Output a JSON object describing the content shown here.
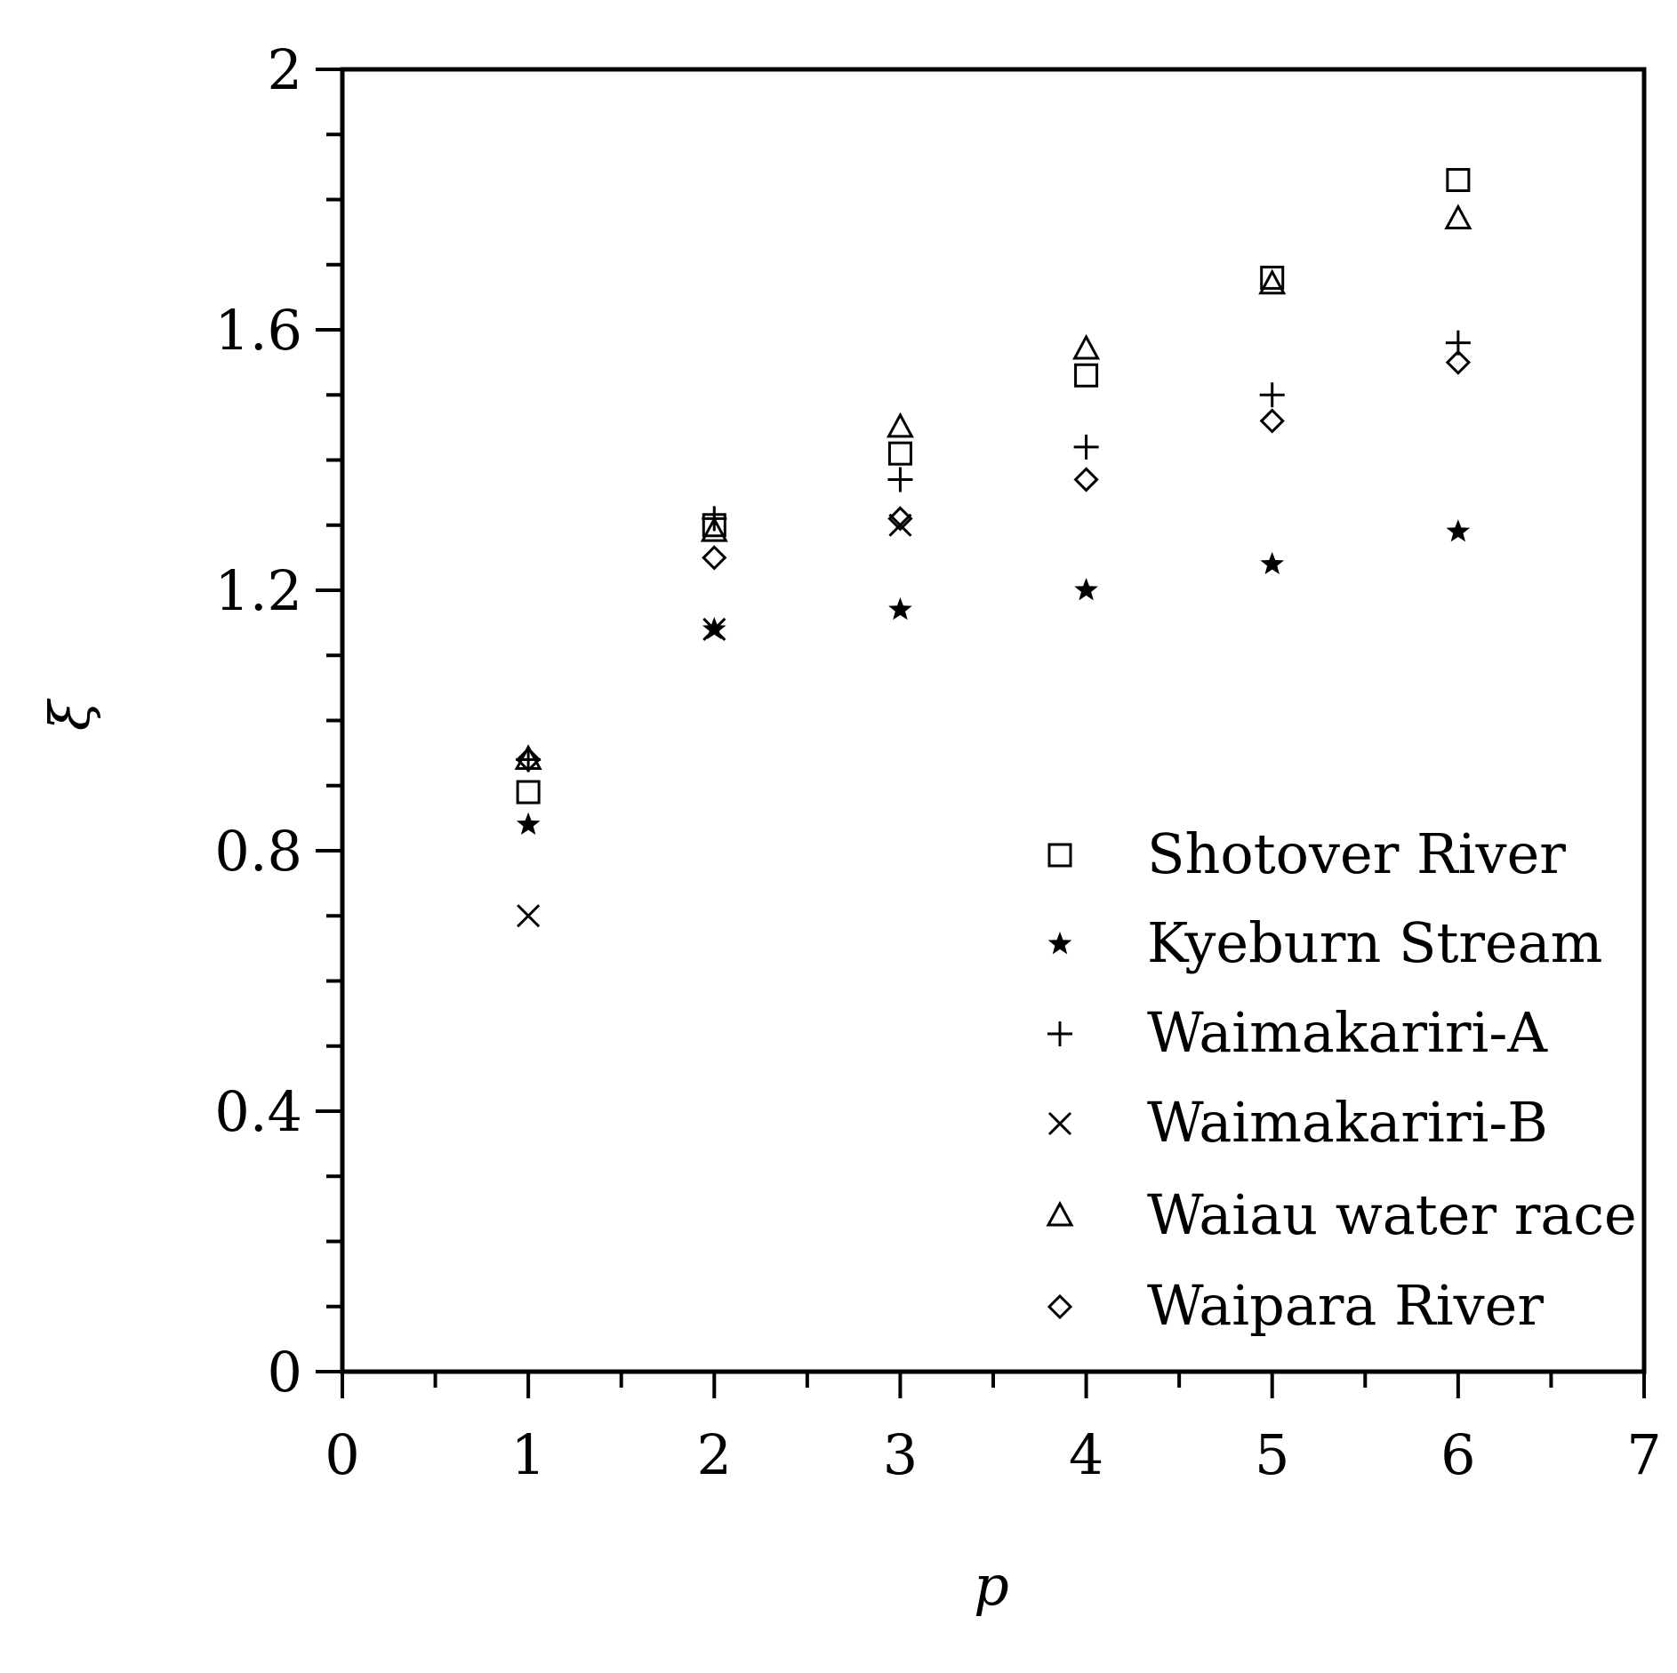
{
  "chart_data": {
    "type": "scatter",
    "title": "",
    "xlabel": "p",
    "ylabel": "ξ",
    "xlim": [
      0,
      7
    ],
    "ylim": [
      0,
      2
    ],
    "xticks": [
      "0",
      "1",
      "2",
      "3",
      "4",
      "5",
      "6",
      "7"
    ],
    "yticks": [
      "0",
      "0.4",
      "0.8",
      "1.2",
      "1.6",
      "2"
    ],
    "grid": false,
    "legend_position": "bottom-right",
    "series": [
      {
        "name": "Shotover River",
        "marker": "square",
        "points": [
          [
            1,
            0.89
          ],
          [
            2,
            1.3
          ],
          [
            3,
            1.41
          ],
          [
            4,
            1.53
          ],
          [
            5,
            1.68
          ],
          [
            6,
            1.83
          ]
        ]
      },
      {
        "name": "Kyeburn Stream",
        "marker": "star",
        "points": [
          [
            1,
            0.84
          ],
          [
            2,
            1.14
          ],
          [
            3,
            1.17
          ],
          [
            4,
            1.2
          ],
          [
            5,
            1.24
          ],
          [
            6,
            1.29
          ]
        ]
      },
      {
        "name": "Waimakariri-A",
        "marker": "plus",
        "points": [
          [
            1,
            0.94
          ],
          [
            2,
            1.31
          ],
          [
            3,
            1.37
          ],
          [
            4,
            1.42
          ],
          [
            5,
            1.5
          ],
          [
            6,
            1.58
          ]
        ]
      },
      {
        "name": "Waimakariri-B",
        "marker": "x",
        "points": [
          [
            1,
            0.7
          ],
          [
            2,
            1.14
          ],
          [
            3,
            1.3
          ]
        ]
      },
      {
        "name": "Waiau water race",
        "marker": "triangle",
        "points": [
          [
            1,
            0.94
          ],
          [
            2,
            1.29
          ],
          [
            3,
            1.45
          ],
          [
            4,
            1.57
          ],
          [
            5,
            1.67
          ],
          [
            6,
            1.77
          ]
        ]
      },
      {
        "name": "Waipara River",
        "marker": "diamond",
        "points": [
          [
            1,
            0.94
          ],
          [
            2,
            1.25
          ],
          [
            3,
            1.31
          ],
          [
            4,
            1.37
          ],
          [
            5,
            1.46
          ],
          [
            6,
            1.55
          ]
        ]
      }
    ]
  }
}
